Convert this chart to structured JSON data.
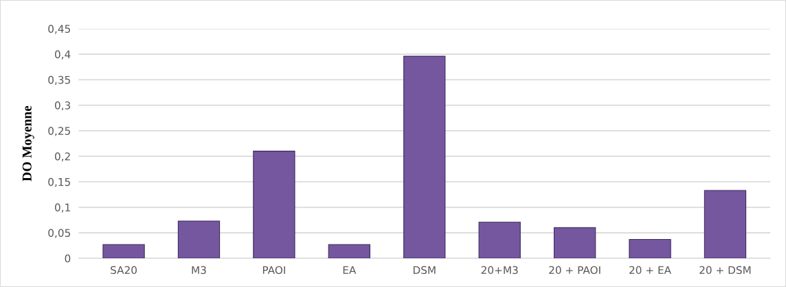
{
  "chart_data": {
    "type": "bar",
    "ylabel": "DO Moyenne",
    "categories": [
      "SA20",
      "M3",
      "PAOI",
      "EA",
      "DSM",
      "20+M3",
      "20 + PAOI",
      "20 + EA",
      "20 + DSM"
    ],
    "values": [
      0.027,
      0.073,
      0.21,
      0.027,
      0.396,
      0.071,
      0.06,
      0.037,
      0.133
    ],
    "color": "#7557a0",
    "ylim": [
      0,
      0.45
    ],
    "yticks": [
      0,
      {
        "value": 0.05,
        "label": "0,05"
      },
      {
        "value": 0.1,
        "label": "0,1"
      },
      {
        "value": 0.15,
        "label": "0,15"
      },
      {
        "value": 0.2,
        "label": "0,2"
      },
      {
        "value": 0.25,
        "label": "0,25"
      },
      {
        "value": 0.3,
        "label": "0,3"
      },
      {
        "value": 0.35,
        "label": "0,35"
      },
      {
        "value": 0.4,
        "label": "0,4"
      },
      {
        "value": 0.45,
        "label": "0,45"
      }
    ],
    "grid": "y"
  }
}
